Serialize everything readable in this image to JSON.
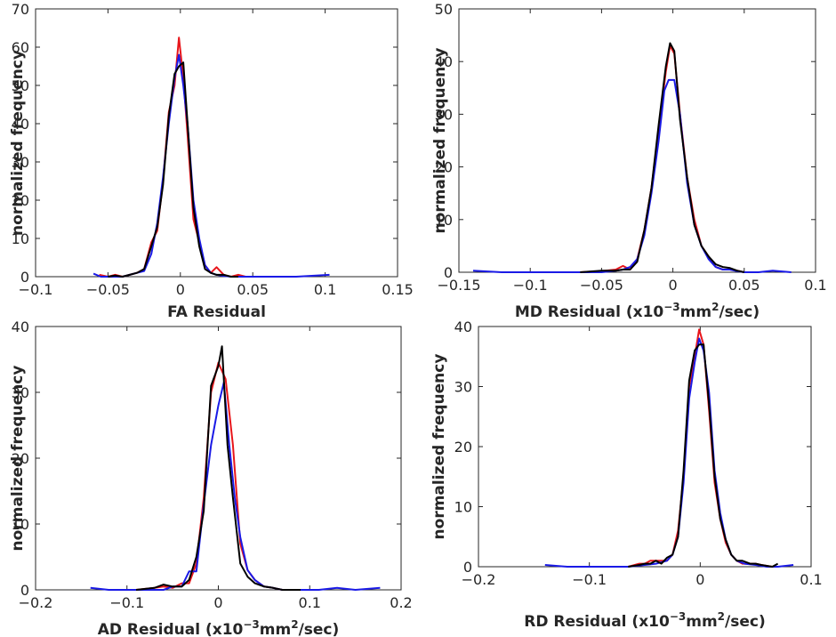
{
  "chart_data": [
    {
      "type": "line",
      "id": "fa",
      "xlabel_parts": [
        "FA Residual"
      ],
      "ylabel": "normalized frequency",
      "xlim": [
        -0.1,
        0.15
      ],
      "ylim": [
        0,
        70
      ],
      "xticks": [
        -0.1,
        -0.05,
        0,
        0.05,
        0.1,
        0.15
      ],
      "xtick_labels": [
        "−0.1",
        "−0.05",
        "0",
        "0.05",
        "0.1",
        "0.15"
      ],
      "yticks": [
        0,
        10,
        20,
        30,
        40,
        50,
        60,
        70
      ],
      "ytick_labels": [
        "0",
        "10",
        "20",
        "30",
        "40",
        "50",
        "60",
        "70"
      ],
      "series": [
        {
          "name": "red",
          "color": "#e8161b",
          "x": [
            -0.056,
            -0.05,
            -0.045,
            -0.04,
            -0.035,
            -0.03,
            -0.025,
            -0.02,
            -0.016,
            -0.012,
            -0.008,
            -0.004,
            -0.001,
            0.002,
            0.005,
            0.009,
            0.013,
            0.017,
            0.021,
            0.025,
            0.03,
            0.035,
            0.04,
            0.045
          ],
          "y": [
            0.5,
            0,
            0.5,
            0,
            0.5,
            1,
            2,
            9,
            12,
            25,
            43,
            50,
            62.5,
            52,
            37,
            15,
            9,
            3,
            1,
            2.5,
            0.5,
            0,
            0.5,
            0
          ]
        },
        {
          "name": "blue",
          "color": "#1a1ae6",
          "x": [
            -0.06,
            -0.055,
            -0.05,
            -0.045,
            -0.04,
            -0.035,
            -0.03,
            -0.025,
            -0.02,
            -0.016,
            -0.012,
            -0.008,
            -0.004,
            -0.001,
            0.002,
            0.005,
            0.009,
            0.013,
            0.017,
            0.021,
            0.025,
            0.03,
            0.035,
            0.05,
            0.08,
            0.103
          ],
          "y": [
            0.8,
            0,
            0,
            0,
            0,
            0.5,
            1,
            1.5,
            6,
            14,
            26,
            40,
            52,
            58,
            50,
            40,
            20,
            10,
            3,
            1,
            0.5,
            0.2,
            0,
            0,
            0,
            0.5
          ]
        },
        {
          "name": "black",
          "color": "#000000",
          "x": [
            -0.05,
            -0.045,
            -0.04,
            -0.035,
            -0.03,
            -0.025,
            -0.02,
            -0.016,
            -0.012,
            -0.008,
            -0.004,
            -0.001,
            0.002,
            0.005,
            0.009,
            0.013,
            0.017,
            0.021,
            0.025,
            0.03,
            0.035,
            0.04
          ],
          "y": [
            0,
            0.3,
            0,
            0.5,
            1,
            2,
            8,
            13,
            24,
            42,
            53,
            55,
            56,
            40,
            18,
            8,
            2,
            1,
            0.5,
            0.5,
            0,
            0
          ]
        }
      ]
    },
    {
      "type": "line",
      "id": "md",
      "xlabel_parts": [
        "MD Residual (x10",
        "−3",
        "mm",
        "2",
        "/sec)"
      ],
      "ylabel": "normalized frequency",
      "xlim": [
        -0.15,
        0.1
      ],
      "ylim": [
        0,
        50
      ],
      "xticks": [
        -0.15,
        -0.1,
        -0.05,
        0,
        0.05,
        0.1
      ],
      "xtick_labels": [
        "−0.15",
        "−0.1",
        "−0.05",
        "0",
        "0.05",
        "0.1"
      ],
      "yticks": [
        0,
        10,
        20,
        30,
        40,
        50
      ],
      "ytick_labels": [
        "0",
        "10",
        "20",
        "30",
        "40",
        "50"
      ],
      "series": [
        {
          "name": "red",
          "color": "#e8161b",
          "x": [
            -0.065,
            -0.05,
            -0.04,
            -0.035,
            -0.03,
            -0.025,
            -0.02,
            -0.015,
            -0.01,
            -0.005,
            -0.002,
            0.001,
            0.005,
            0.01,
            0.015,
            0.02,
            0.025,
            0.03,
            0.035,
            0.04,
            0.045,
            0.05
          ],
          "y": [
            0,
            0.2,
            0.5,
            1.2,
            0.5,
            2.5,
            8,
            16,
            27,
            38,
            43,
            41.5,
            30,
            18,
            10,
            5,
            3,
            1,
            0.5,
            0.5,
            0.3,
            0
          ]
        },
        {
          "name": "blue",
          "color": "#1a1ae6",
          "x": [
            -0.14,
            -0.12,
            -0.1,
            -0.08,
            -0.065,
            -0.05,
            -0.04,
            -0.035,
            -0.03,
            -0.025,
            -0.02,
            -0.015,
            -0.01,
            -0.006,
            -0.003,
            0.001,
            0.005,
            0.01,
            0.015,
            0.02,
            0.025,
            0.03,
            0.035,
            0.04,
            0.045,
            0.05,
            0.06,
            0.07,
            0.083
          ],
          "y": [
            0.3,
            0,
            0,
            0,
            0,
            0,
            0.3,
            0.5,
            1,
            2.5,
            7,
            15,
            25,
            34.5,
            36.5,
            36.5,
            30,
            17,
            9,
            5,
            2.5,
            1,
            0.5,
            0.5,
            0.2,
            0,
            0,
            0.3,
            0
          ]
        },
        {
          "name": "black",
          "color": "#000000",
          "x": [
            -0.065,
            -0.05,
            -0.04,
            -0.035,
            -0.03,
            -0.025,
            -0.02,
            -0.015,
            -0.01,
            -0.005,
            -0.002,
            0.001,
            0.005,
            0.01,
            0.015,
            0.02,
            0.025,
            0.03,
            0.035,
            0.04,
            0.045,
            0.05
          ],
          "y": [
            0,
            0.3,
            0.3,
            0.5,
            0.5,
            2,
            8,
            16,
            28,
            39,
            43.5,
            42,
            29,
            18,
            9,
            5,
            3,
            1.5,
            1,
            0.8,
            0.3,
            0
          ]
        }
      ]
    },
    {
      "type": "line",
      "id": "ad",
      "xlabel_parts": [
        "AD Residual (x10",
        "−3",
        "mm",
        "2",
        "/sec)"
      ],
      "ylabel": "normalized frequency",
      "xlim": [
        -0.2,
        0.2
      ],
      "ylim": [
        0,
        40
      ],
      "xticks": [
        -0.2,
        -0.1,
        0,
        0.1,
        0.2
      ],
      "xtick_labels": [
        "−0.2",
        "−0.1",
        "0",
        "0.1",
        "0.2"
      ],
      "yticks": [
        0,
        10,
        20,
        30,
        40
      ],
      "ytick_labels": [
        "0",
        "10",
        "20",
        "30",
        "40"
      ],
      "series": [
        {
          "name": "red",
          "color": "#e8161b",
          "x": [
            -0.09,
            -0.07,
            -0.06,
            -0.05,
            -0.04,
            -0.032,
            -0.024,
            -0.016,
            -0.008,
            0,
            0.008,
            0.016,
            0.024,
            0.032,
            0.04,
            0.05,
            0.06,
            0.07,
            0.09
          ],
          "y": [
            0,
            0.3,
            0.5,
            0.3,
            1,
            1,
            4,
            14,
            30,
            34.5,
            32,
            22,
            7,
            3,
            1.5,
            0.5,
            0.3,
            0,
            0
          ]
        },
        {
          "name": "blue",
          "color": "#1a1ae6",
          "x": [
            -0.14,
            -0.12,
            -0.1,
            -0.09,
            -0.07,
            -0.06,
            -0.05,
            -0.04,
            -0.032,
            -0.024,
            -0.016,
            -0.008,
            0,
            0.006,
            0.012,
            0.018,
            0.024,
            0.032,
            0.04,
            0.05,
            0.06,
            0.07,
            0.09,
            0.11,
            0.13,
            0.15,
            0.177
          ],
          "y": [
            0.3,
            0,
            0,
            0,
            0,
            0,
            0.5,
            0.5,
            2.8,
            2.8,
            13,
            22,
            28,
            31.5,
            22,
            14,
            8,
            3,
            1.5,
            0.5,
            0.3,
            0,
            0,
            0,
            0.3,
            0,
            0.3
          ]
        },
        {
          "name": "black",
          "color": "#000000",
          "x": [
            -0.09,
            -0.07,
            -0.06,
            -0.05,
            -0.04,
            -0.032,
            -0.024,
            -0.016,
            -0.008,
            0,
            0.004,
            0.01,
            0.016,
            0.024,
            0.032,
            0.04,
            0.05,
            0.06,
            0.07,
            0.09
          ],
          "y": [
            0,
            0.3,
            0.8,
            0.5,
            0.5,
            1.5,
            5,
            12,
            31,
            34,
            37,
            22,
            14,
            4,
            2,
            1,
            0.5,
            0.3,
            0,
            0
          ]
        }
      ]
    },
    {
      "type": "line",
      "id": "rd",
      "xlabel_parts": [
        "RD Residual (x10",
        "−3",
        "mm",
        "2",
        "/sec)"
      ],
      "ylabel": "normalized frequency",
      "xlim": [
        -0.2,
        0.1
      ],
      "ylim": [
        0,
        40
      ],
      "xticks": [
        -0.2,
        -0.1,
        0,
        0.1
      ],
      "xtick_labels": [
        "−0.2",
        "−0.1",
        "0",
        "0.1"
      ],
      "yticks": [
        0,
        10,
        20,
        30,
        40
      ],
      "ytick_labels": [
        "0",
        "10",
        "20",
        "30",
        "40"
      ],
      "series": [
        {
          "name": "red",
          "color": "#e8161b",
          "x": [
            -0.065,
            -0.055,
            -0.05,
            -0.045,
            -0.04,
            -0.035,
            -0.03,
            -0.025,
            -0.02,
            -0.015,
            -0.01,
            -0.005,
            -0.001,
            0.003,
            0.008,
            0.013,
            0.018,
            0.023,
            0.028,
            0.033,
            0.038,
            0.045,
            0.05,
            0.055,
            0.065
          ],
          "y": [
            0,
            0.5,
            0.5,
            1,
            1,
            1,
            1,
            2,
            6,
            15,
            30,
            35,
            39.5,
            37,
            26,
            14,
            8,
            4,
            2,
            1,
            0.5,
            0.5,
            0.5,
            0.3,
            0
          ]
        },
        {
          "name": "blue",
          "color": "#1a1ae6",
          "x": [
            -0.14,
            -0.12,
            -0.1,
            -0.08,
            -0.065,
            -0.05,
            -0.04,
            -0.03,
            -0.025,
            -0.02,
            -0.015,
            -0.01,
            -0.005,
            -0.001,
            0.003,
            0.008,
            0.013,
            0.018,
            0.023,
            0.028,
            0.033,
            0.04,
            0.05,
            0.06,
            0.07,
            0.084
          ],
          "y": [
            0.3,
            0,
            0,
            0,
            0,
            0.3,
            0.5,
            1,
            2,
            5,
            14,
            28,
            34,
            38,
            36,
            29,
            16,
            9,
            4.5,
            2,
            1,
            0.5,
            0.3,
            0,
            0,
            0.3
          ]
        },
        {
          "name": "black",
          "color": "#000000",
          "x": [
            -0.065,
            -0.055,
            -0.05,
            -0.045,
            -0.04,
            -0.035,
            -0.03,
            -0.025,
            -0.02,
            -0.015,
            -0.01,
            -0.005,
            -0.001,
            0.003,
            0.008,
            0.013,
            0.018,
            0.023,
            0.028,
            0.033,
            0.038,
            0.045,
            0.05,
            0.055,
            0.065,
            0.07
          ],
          "y": [
            0,
            0.3,
            0.5,
            0.5,
            1,
            0.5,
            1.5,
            2,
            5,
            16,
            31,
            36,
            37,
            37,
            27,
            15,
            8,
            4.5,
            2,
            1,
            1,
            0.5,
            0.5,
            0.3,
            0,
            0.5
          ]
        }
      ]
    }
  ]
}
